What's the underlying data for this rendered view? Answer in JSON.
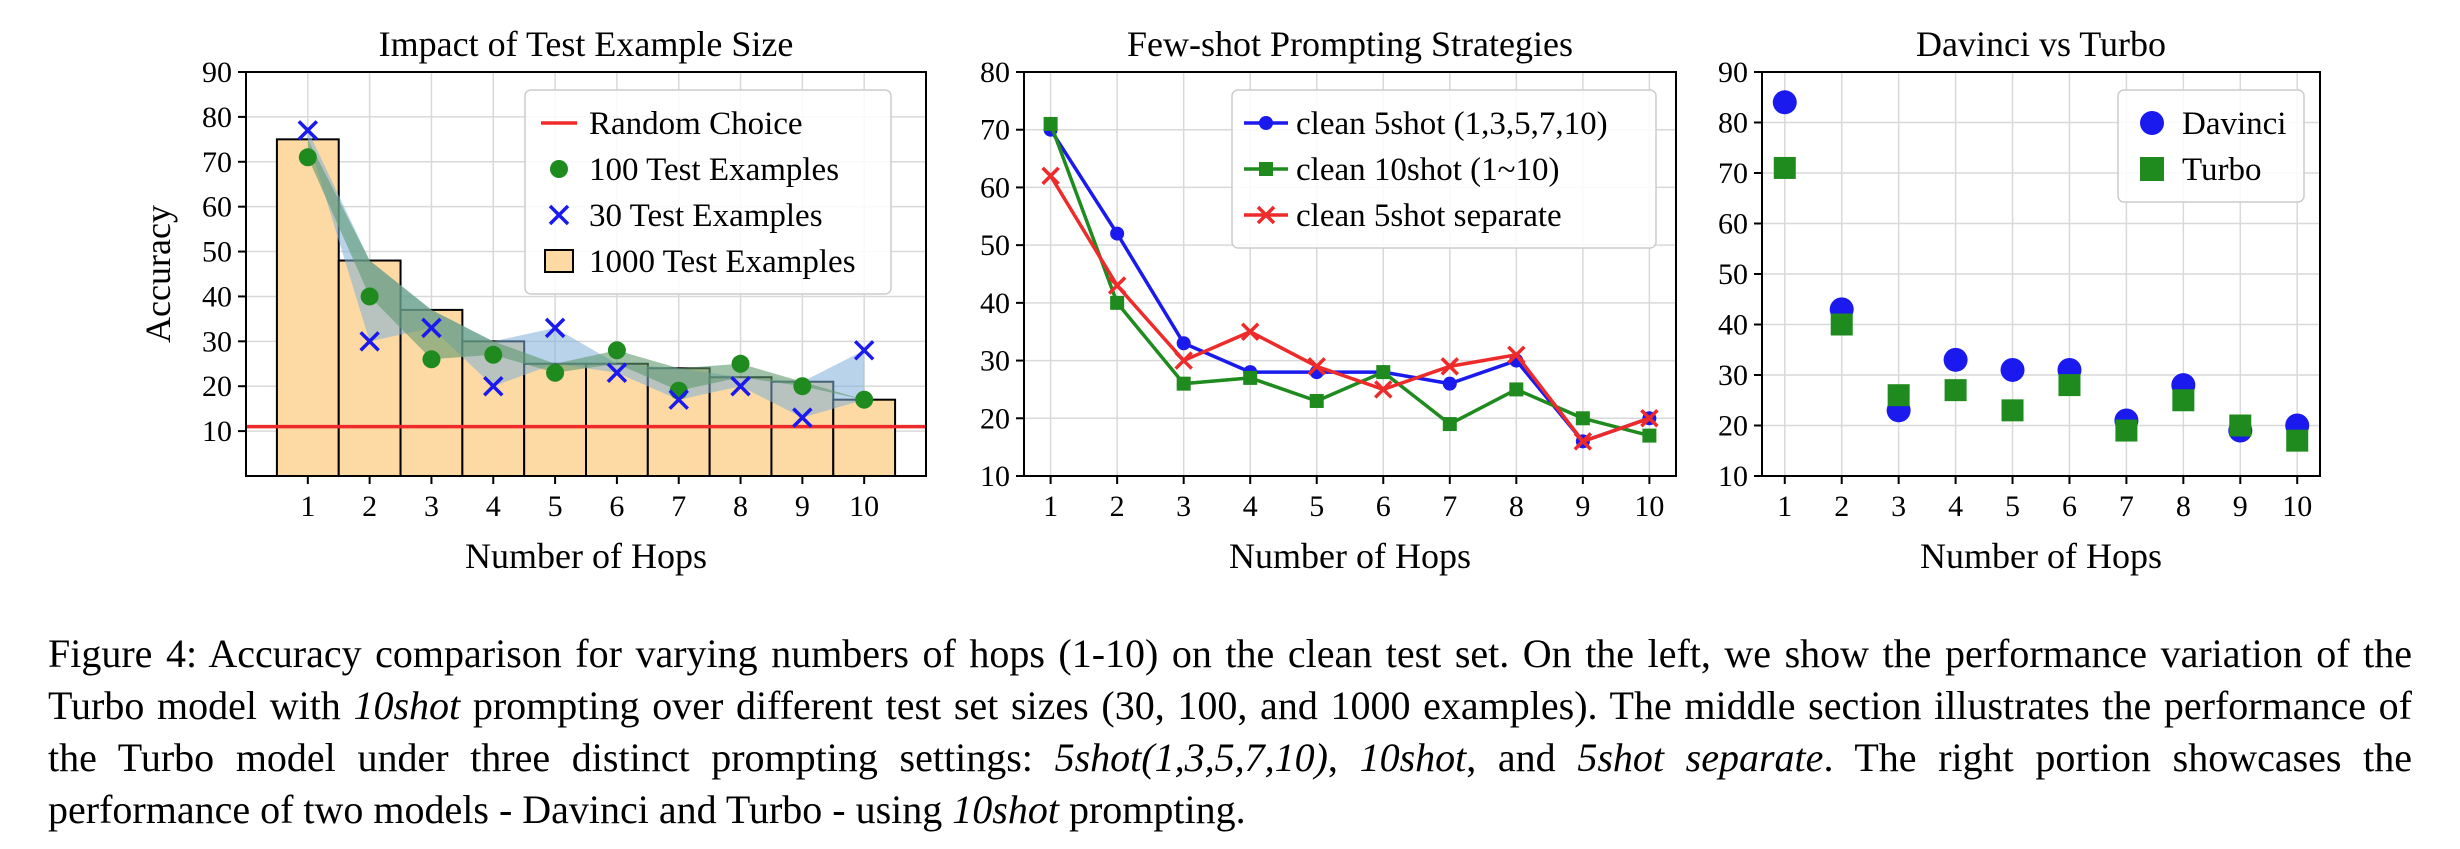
{
  "chart_data": [
    {
      "type": "bar",
      "title": "Impact of Test Example Size",
      "xlabel": "Number of Hops",
      "ylabel": "Accuracy",
      "categories": [
        "1",
        "2",
        "3",
        "4",
        "5",
        "6",
        "7",
        "8",
        "9",
        "10"
      ],
      "xlim": [
        0,
        11
      ],
      "ylim": [
        0,
        90
      ],
      "yticks": [
        10,
        20,
        30,
        40,
        50,
        60,
        70,
        80,
        90
      ],
      "grid": true,
      "legend": "top-right",
      "colors": {
        "random": "#ee2b2b",
        "green": "#1f8b1f",
        "blue": "#1a1aee",
        "bar": "#fdd9a3",
        "blueband": "#7fb0d8",
        "greenband": "#5f9970"
      },
      "series": [
        {
          "name": "Random Choice",
          "type": "hline",
          "value": 11
        },
        {
          "name": "100 Test Examples",
          "type": "scatter",
          "marker": "circle",
          "values": [
            71,
            40,
            26,
            27,
            23,
            28,
            19,
            25,
            20,
            17
          ]
        },
        {
          "name": "30 Test Examples",
          "type": "scatter",
          "marker": "x",
          "values": [
            77,
            30,
            33,
            20,
            33,
            23,
            17,
            20,
            13,
            28
          ]
        },
        {
          "name": "1000 Test Examples",
          "type": "bar",
          "values": [
            75,
            48,
            37,
            30,
            25,
            25,
            24,
            22,
            21,
            17
          ]
        }
      ]
    },
    {
      "type": "line",
      "title": "Few-shot Prompting Strategies",
      "xlabel": "Number of Hops",
      "ylabel": "",
      "x": [
        1,
        2,
        3,
        4,
        5,
        6,
        7,
        8,
        9,
        10
      ],
      "xlim": [
        0.6,
        10.4
      ],
      "ylim": [
        10,
        80
      ],
      "yticks": [
        10,
        20,
        30,
        40,
        50,
        60,
        70,
        80
      ],
      "grid": true,
      "legend": "top-right",
      "series": [
        {
          "name": "clean 5shot (1,3,5,7,10)",
          "marker": "circle",
          "color": "#1a1aee",
          "values": [
            70,
            52,
            33,
            28,
            28,
            28,
            26,
            30,
            16,
            20
          ]
        },
        {
          "name": "clean 10shot (1~10)",
          "marker": "square",
          "color": "#1f8b1f",
          "values": [
            71,
            40,
            26,
            27,
            23,
            28,
            19,
            25,
            20,
            17
          ]
        },
        {
          "name": "clean 5shot separate",
          "marker": "x",
          "color": "#ee2b2b",
          "values": [
            62,
            43,
            30,
            35,
            29,
            25,
            29,
            31,
            16,
            20
          ]
        }
      ]
    },
    {
      "type": "scatter",
      "title": "Davinci vs Turbo",
      "xlabel": "Number of Hops",
      "ylabel": "",
      "x": [
        1,
        2,
        3,
        4,
        5,
        6,
        7,
        8,
        9,
        10
      ],
      "xlim": [
        0.6,
        10.4
      ],
      "ylim": [
        10,
        90
      ],
      "yticks": [
        10,
        20,
        30,
        40,
        50,
        60,
        70,
        80,
        90
      ],
      "grid": true,
      "legend": "top-right",
      "series": [
        {
          "name": "Davinci",
          "marker": "circle",
          "color": "#1a1aee",
          "values": [
            84,
            43,
            23,
            33,
            31,
            31,
            21,
            28,
            19,
            20
          ]
        },
        {
          "name": "Turbo",
          "marker": "square",
          "color": "#1f8b1f",
          "values": [
            71,
            40,
            26,
            27,
            23,
            28,
            19,
            25,
            20,
            17
          ]
        }
      ]
    }
  ],
  "caption": {
    "p1": "Figure 4: Accuracy comparison for varying numbers of hops (1-10) on the clean test set. On the left, we show the performance variation of the Turbo model with ",
    "i1": "10shot",
    "p2": " prompting over different test set sizes (30, 100, and 1000 examples). The middle section illustrates the performance of the Turbo model under three distinct prompting settings: ",
    "i2": "5shot(1,3,5,7,10)",
    "p3": ", ",
    "i3": "10shot",
    "p4": ", and ",
    "i4": "5shot separate",
    "p5": ". The right portion showcases the performance of two models - Davinci and Turbo - using ",
    "i5": "10shot",
    "p6": " prompting."
  }
}
